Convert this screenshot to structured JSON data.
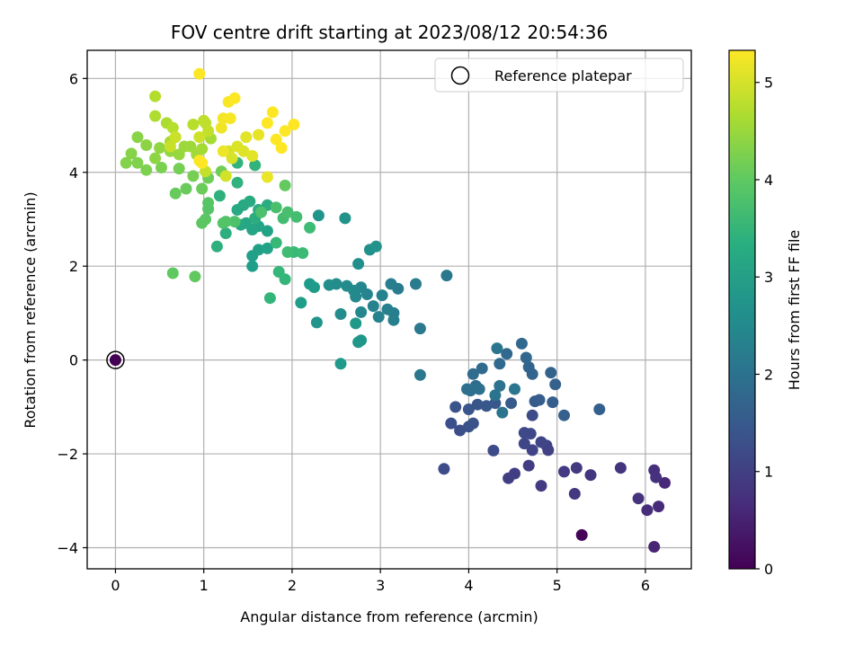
{
  "chart_data": {
    "type": "scatter",
    "title": "FOV centre drift starting at 2023/08/12 20:54:36",
    "xlabel": "Angular distance from reference (arcmin)",
    "ylabel": "Rotation from reference (arcmin)",
    "xlim": [
      -0.32,
      6.52
    ],
    "ylim": [
      -4.45,
      6.6
    ],
    "xticks": [
      0,
      1,
      2,
      3,
      4,
      5,
      6
    ],
    "yticks": [
      -4,
      -2,
      0,
      2,
      4,
      6
    ],
    "xtick_labels": [
      "0",
      "1",
      "2",
      "3",
      "4",
      "5",
      "6"
    ],
    "ytick_labels": [
      "−4",
      "−2",
      "0",
      "2",
      "4",
      "6"
    ],
    "grid": true,
    "colormap": "viridis",
    "colorbar": {
      "label": "Hours from first FF file",
      "range": [
        0,
        5.33
      ],
      "ticks": [
        0,
        1,
        2,
        3,
        4,
        5
      ],
      "tick_labels": [
        "0",
        "1",
        "2",
        "3",
        "4",
        "5"
      ]
    },
    "legend": {
      "position": "top-right",
      "entries": [
        "Reference platepar"
      ]
    },
    "reference_point": {
      "x": 0,
      "y": 0,
      "c": 0.0
    },
    "points": [
      {
        "x": 5.28,
        "y": -3.73,
        "c": 0.05
      },
      {
        "x": 6.1,
        "y": -3.98,
        "c": 0.55
      },
      {
        "x": 6.22,
        "y": -2.62,
        "c": 0.6
      },
      {
        "x": 6.15,
        "y": -3.12,
        "c": 0.65
      },
      {
        "x": 6.02,
        "y": -3.2,
        "c": 0.7
      },
      {
        "x": 6.1,
        "y": -2.35,
        "c": 0.72
      },
      {
        "x": 6.12,
        "y": -2.5,
        "c": 0.75
      },
      {
        "x": 5.92,
        "y": -2.95,
        "c": 0.78
      },
      {
        "x": 5.72,
        "y": -2.3,
        "c": 0.8
      },
      {
        "x": 5.38,
        "y": -2.45,
        "c": 0.82
      },
      {
        "x": 5.2,
        "y": -2.85,
        "c": 0.85
      },
      {
        "x": 5.22,
        "y": -2.3,
        "c": 0.88
      },
      {
        "x": 5.08,
        "y": -2.38,
        "c": 0.9
      },
      {
        "x": 4.82,
        "y": -2.68,
        "c": 0.92
      },
      {
        "x": 4.68,
        "y": -2.25,
        "c": 0.95
      },
      {
        "x": 4.52,
        "y": -2.42,
        "c": 0.97
      },
      {
        "x": 4.45,
        "y": -2.52,
        "c": 1.0
      },
      {
        "x": 4.9,
        "y": -1.92,
        "c": 1.02
      },
      {
        "x": 4.88,
        "y": -1.82,
        "c": 1.05
      },
      {
        "x": 4.72,
        "y": -1.92,
        "c": 1.07
      },
      {
        "x": 4.82,
        "y": -1.75,
        "c": 1.1
      },
      {
        "x": 4.63,
        "y": -1.78,
        "c": 1.12
      },
      {
        "x": 4.7,
        "y": -1.57,
        "c": 1.15
      },
      {
        "x": 4.63,
        "y": -1.55,
        "c": 1.17
      },
      {
        "x": 4.72,
        "y": -1.18,
        "c": 1.2
      },
      {
        "x": 4.28,
        "y": -1.93,
        "c": 1.22
      },
      {
        "x": 3.72,
        "y": -2.32,
        "c": 1.25
      },
      {
        "x": 3.9,
        "y": -1.5,
        "c": 1.27
      },
      {
        "x": 3.8,
        "y": -1.35,
        "c": 1.3
      },
      {
        "x": 4.0,
        "y": -1.42,
        "c": 1.32
      },
      {
        "x": 4.05,
        "y": -1.35,
        "c": 1.35
      },
      {
        "x": 3.85,
        "y": -1.0,
        "c": 1.37
      },
      {
        "x": 4.0,
        "y": -1.05,
        "c": 1.4
      },
      {
        "x": 4.1,
        "y": -0.95,
        "c": 1.42
      },
      {
        "x": 4.2,
        "y": -0.98,
        "c": 1.45
      },
      {
        "x": 4.3,
        "y": -0.92,
        "c": 1.47
      },
      {
        "x": 4.48,
        "y": -0.92,
        "c": 1.5
      },
      {
        "x": 4.75,
        "y": -0.88,
        "c": 1.52
      },
      {
        "x": 4.8,
        "y": -0.85,
        "c": 1.55
      },
      {
        "x": 4.95,
        "y": -0.9,
        "c": 1.57
      },
      {
        "x": 5.08,
        "y": -1.18,
        "c": 1.6
      },
      {
        "x": 5.48,
        "y": -1.05,
        "c": 1.62
      },
      {
        "x": 4.98,
        "y": -0.52,
        "c": 1.65
      },
      {
        "x": 4.93,
        "y": -0.27,
        "c": 1.67
      },
      {
        "x": 4.72,
        "y": -0.3,
        "c": 1.7
      },
      {
        "x": 4.68,
        "y": -0.15,
        "c": 1.72
      },
      {
        "x": 4.65,
        "y": 0.05,
        "c": 1.75
      },
      {
        "x": 4.6,
        "y": 0.35,
        "c": 1.77
      },
      {
        "x": 4.43,
        "y": 0.13,
        "c": 1.8
      },
      {
        "x": 4.35,
        "y": -0.08,
        "c": 1.82
      },
      {
        "x": 4.15,
        "y": -0.18,
        "c": 1.85
      },
      {
        "x": 4.05,
        "y": -0.3,
        "c": 1.87
      },
      {
        "x": 4.08,
        "y": -0.55,
        "c": 1.9
      },
      {
        "x": 4.02,
        "y": -0.65,
        "c": 1.92
      },
      {
        "x": 3.98,
        "y": -0.62,
        "c": 1.95
      },
      {
        "x": 4.12,
        "y": -0.62,
        "c": 1.97
      },
      {
        "x": 4.35,
        "y": -0.55,
        "c": 2.0
      },
      {
        "x": 4.3,
        "y": -0.75,
        "c": 2.02
      },
      {
        "x": 4.38,
        "y": -1.12,
        "c": 2.05
      },
      {
        "x": 4.52,
        "y": -0.62,
        "c": 2.07
      },
      {
        "x": 4.32,
        "y": 0.25,
        "c": 2.1
      },
      {
        "x": 3.45,
        "y": -0.32,
        "c": 2.12
      },
      {
        "x": 3.75,
        "y": 1.8,
        "c": 2.15
      },
      {
        "x": 3.45,
        "y": 0.67,
        "c": 2.17
      },
      {
        "x": 3.4,
        "y": 1.62,
        "c": 2.2
      },
      {
        "x": 3.2,
        "y": 1.52,
        "c": 2.22
      },
      {
        "x": 3.12,
        "y": 1.62,
        "c": 2.25
      },
      {
        "x": 3.15,
        "y": 1.0,
        "c": 2.27
      },
      {
        "x": 3.15,
        "y": 0.85,
        "c": 2.3
      },
      {
        "x": 3.08,
        "y": 1.08,
        "c": 2.32
      },
      {
        "x": 3.02,
        "y": 1.38,
        "c": 2.35
      },
      {
        "x": 2.98,
        "y": 0.92,
        "c": 2.37
      },
      {
        "x": 2.92,
        "y": 1.15,
        "c": 2.4
      },
      {
        "x": 2.85,
        "y": 1.4,
        "c": 2.42
      },
      {
        "x": 2.78,
        "y": 1.02,
        "c": 2.45
      },
      {
        "x": 2.78,
        "y": 1.55,
        "c": 2.47
      },
      {
        "x": 2.72,
        "y": 1.35,
        "c": 2.5
      },
      {
        "x": 2.7,
        "y": 1.48,
        "c": 2.52
      },
      {
        "x": 2.62,
        "y": 1.58,
        "c": 2.55
      },
      {
        "x": 2.55,
        "y": 0.98,
        "c": 2.57
      },
      {
        "x": 2.5,
        "y": 1.62,
        "c": 2.6
      },
      {
        "x": 2.42,
        "y": 1.6,
        "c": 2.62
      },
      {
        "x": 2.75,
        "y": 2.05,
        "c": 2.65
      },
      {
        "x": 2.88,
        "y": 2.35,
        "c": 2.67
      },
      {
        "x": 2.95,
        "y": 2.42,
        "c": 2.7
      },
      {
        "x": 2.6,
        "y": 3.02,
        "c": 2.72
      },
      {
        "x": 2.3,
        "y": 3.08,
        "c": 2.75
      },
      {
        "x": 2.28,
        "y": 0.8,
        "c": 2.77
      },
      {
        "x": 2.78,
        "y": 0.42,
        "c": 2.8
      },
      {
        "x": 2.75,
        "y": 0.38,
        "c": 2.82
      },
      {
        "x": 2.72,
        "y": 0.78,
        "c": 2.85
      },
      {
        "x": 2.55,
        "y": -0.08,
        "c": 2.87
      },
      {
        "x": 2.25,
        "y": 1.55,
        "c": 2.9
      },
      {
        "x": 2.2,
        "y": 1.62,
        "c": 2.92
      },
      {
        "x": 2.1,
        "y": 1.22,
        "c": 2.95
      },
      {
        "x": 1.55,
        "y": 2.0,
        "c": 2.97
      },
      {
        "x": 1.55,
        "y": 2.22,
        "c": 3.0
      },
      {
        "x": 1.62,
        "y": 2.35,
        "c": 3.02
      },
      {
        "x": 1.72,
        "y": 2.38,
        "c": 3.05
      },
      {
        "x": 1.72,
        "y": 2.75,
        "c": 3.07
      },
      {
        "x": 1.62,
        "y": 2.85,
        "c": 3.1
      },
      {
        "x": 1.55,
        "y": 2.78,
        "c": 3.12
      },
      {
        "x": 1.48,
        "y": 2.92,
        "c": 3.15
      },
      {
        "x": 1.42,
        "y": 2.88,
        "c": 3.17
      },
      {
        "x": 1.38,
        "y": 3.2,
        "c": 3.2
      },
      {
        "x": 1.45,
        "y": 3.3,
        "c": 3.22
      },
      {
        "x": 1.52,
        "y": 3.38,
        "c": 3.25
      },
      {
        "x": 1.62,
        "y": 3.2,
        "c": 3.27
      },
      {
        "x": 1.72,
        "y": 3.3,
        "c": 3.3
      },
      {
        "x": 1.58,
        "y": 3.02,
        "c": 3.32
      },
      {
        "x": 1.25,
        "y": 2.7,
        "c": 3.35
      },
      {
        "x": 1.15,
        "y": 2.42,
        "c": 3.37
      },
      {
        "x": 1.18,
        "y": 3.5,
        "c": 3.4
      },
      {
        "x": 1.38,
        "y": 3.78,
        "c": 3.42
      },
      {
        "x": 1.38,
        "y": 4.2,
        "c": 3.45
      },
      {
        "x": 1.58,
        "y": 4.15,
        "c": 3.47
      },
      {
        "x": 1.75,
        "y": 1.32,
        "c": 3.5
      },
      {
        "x": 1.92,
        "y": 1.72,
        "c": 3.52
      },
      {
        "x": 1.85,
        "y": 1.88,
        "c": 3.55
      },
      {
        "x": 1.82,
        "y": 2.5,
        "c": 3.57
      },
      {
        "x": 2.02,
        "y": 2.3,
        "c": 3.6
      },
      {
        "x": 2.12,
        "y": 2.28,
        "c": 3.62
      },
      {
        "x": 2.2,
        "y": 2.82,
        "c": 3.65
      },
      {
        "x": 1.95,
        "y": 2.3,
        "c": 3.67
      },
      {
        "x": 1.9,
        "y": 3.02,
        "c": 3.7
      },
      {
        "x": 2.05,
        "y": 3.05,
        "c": 3.72
      },
      {
        "x": 1.95,
        "y": 3.15,
        "c": 3.75
      },
      {
        "x": 1.82,
        "y": 3.25,
        "c": 3.77
      },
      {
        "x": 1.65,
        "y": 3.15,
        "c": 3.8
      },
      {
        "x": 1.35,
        "y": 2.95,
        "c": 3.82
      },
      {
        "x": 1.25,
        "y": 2.95,
        "c": 3.85
      },
      {
        "x": 1.22,
        "y": 2.92,
        "c": 3.87
      },
      {
        "x": 1.05,
        "y": 3.22,
        "c": 3.9
      },
      {
        "x": 1.05,
        "y": 3.35,
        "c": 3.92
      },
      {
        "x": 1.02,
        "y": 3.0,
        "c": 3.95
      },
      {
        "x": 0.98,
        "y": 2.92,
        "c": 3.97
      },
      {
        "x": 0.65,
        "y": 1.85,
        "c": 4.0
      },
      {
        "x": 0.9,
        "y": 1.78,
        "c": 4.02
      },
      {
        "x": 1.92,
        "y": 3.72,
        "c": 4.05
      },
      {
        "x": 0.68,
        "y": 3.55,
        "c": 4.07
      },
      {
        "x": 0.8,
        "y": 3.65,
        "c": 4.1
      },
      {
        "x": 0.98,
        "y": 3.65,
        "c": 4.12
      },
      {
        "x": 1.05,
        "y": 3.88,
        "c": 4.15
      },
      {
        "x": 1.2,
        "y": 4.02,
        "c": 4.17
      },
      {
        "x": 0.72,
        "y": 4.08,
        "c": 4.2
      },
      {
        "x": 0.88,
        "y": 3.92,
        "c": 4.22
      },
      {
        "x": 0.52,
        "y": 4.1,
        "c": 4.25
      },
      {
        "x": 0.35,
        "y": 4.05,
        "c": 4.27
      },
      {
        "x": 0.25,
        "y": 4.2,
        "c": 4.3
      },
      {
        "x": 0.12,
        "y": 4.2,
        "c": 4.32
      },
      {
        "x": 0.18,
        "y": 4.4,
        "c": 4.35
      },
      {
        "x": 0.25,
        "y": 4.75,
        "c": 4.37
      },
      {
        "x": 0.35,
        "y": 4.58,
        "c": 4.4
      },
      {
        "x": 0.45,
        "y": 4.3,
        "c": 4.42
      },
      {
        "x": 0.5,
        "y": 4.52,
        "c": 4.45
      },
      {
        "x": 0.62,
        "y": 4.45,
        "c": 4.47
      },
      {
        "x": 0.72,
        "y": 4.38,
        "c": 4.5
      },
      {
        "x": 0.78,
        "y": 4.55,
        "c": 4.52
      },
      {
        "x": 0.85,
        "y": 4.55,
        "c": 4.55
      },
      {
        "x": 0.92,
        "y": 4.38,
        "c": 4.57
      },
      {
        "x": 0.98,
        "y": 4.5,
        "c": 4.6
      },
      {
        "x": 1.08,
        "y": 4.72,
        "c": 4.62
      },
      {
        "x": 0.62,
        "y": 4.65,
        "c": 4.65
      },
      {
        "x": 0.58,
        "y": 5.05,
        "c": 4.67
      },
      {
        "x": 0.45,
        "y": 5.2,
        "c": 4.7
      },
      {
        "x": 0.45,
        "y": 5.62,
        "c": 4.72
      },
      {
        "x": 0.65,
        "y": 4.95,
        "c": 4.75
      },
      {
        "x": 0.88,
        "y": 5.02,
        "c": 4.77
      },
      {
        "x": 1.0,
        "y": 5.1,
        "c": 4.8
      },
      {
        "x": 1.02,
        "y": 5.05,
        "c": 4.82
      },
      {
        "x": 1.05,
        "y": 4.88,
        "c": 4.85
      },
      {
        "x": 1.02,
        "y": 4.02,
        "c": 4.87
      },
      {
        "x": 0.62,
        "y": 4.55,
        "c": 4.9
      },
      {
        "x": 0.68,
        "y": 4.75,
        "c": 4.92
      },
      {
        "x": 0.95,
        "y": 4.75,
        "c": 4.95
      },
      {
        "x": 1.25,
        "y": 3.92,
        "c": 4.97
      },
      {
        "x": 1.28,
        "y": 4.45,
        "c": 5.0
      },
      {
        "x": 1.32,
        "y": 4.3,
        "c": 5.02
      },
      {
        "x": 1.38,
        "y": 4.55,
        "c": 5.05
      },
      {
        "x": 1.45,
        "y": 4.45,
        "c": 5.07
      },
      {
        "x": 1.48,
        "y": 4.75,
        "c": 5.1
      },
      {
        "x": 1.55,
        "y": 4.35,
        "c": 5.12
      },
      {
        "x": 1.62,
        "y": 4.8,
        "c": 5.15
      },
      {
        "x": 1.72,
        "y": 3.9,
        "c": 5.17
      },
      {
        "x": 1.22,
        "y": 4.45,
        "c": 5.2
      },
      {
        "x": 1.2,
        "y": 4.95,
        "c": 5.22
      },
      {
        "x": 1.22,
        "y": 5.15,
        "c": 5.25
      },
      {
        "x": 1.3,
        "y": 5.15,
        "c": 5.27
      },
      {
        "x": 1.28,
        "y": 5.5,
        "c": 5.3
      },
      {
        "x": 1.35,
        "y": 5.58,
        "c": 5.32
      },
      {
        "x": 1.72,
        "y": 5.05,
        "c": 5.33
      },
      {
        "x": 1.78,
        "y": 5.28,
        "c": 5.33
      },
      {
        "x": 1.82,
        "y": 4.7,
        "c": 5.33
      },
      {
        "x": 1.88,
        "y": 4.52,
        "c": 5.33
      },
      {
        "x": 1.92,
        "y": 4.88,
        "c": 5.33
      },
      {
        "x": 2.02,
        "y": 5.02,
        "c": 5.33
      },
      {
        "x": 0.95,
        "y": 6.1,
        "c": 5.33
      },
      {
        "x": 0.98,
        "y": 4.2,
        "c": 5.33
      },
      {
        "x": 0.95,
        "y": 4.25,
        "c": 5.33
      }
    ]
  }
}
